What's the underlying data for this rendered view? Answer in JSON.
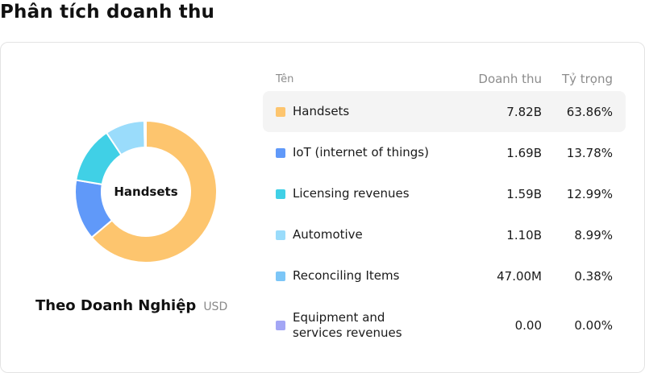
{
  "page": {
    "title": "Phân tích doanh thu"
  },
  "chart_data": {
    "type": "pie",
    "subtype": "donut",
    "center_label": "Handsets",
    "title": "Theo Doanh Nghiệp",
    "unit": "USD",
    "columns": {
      "name": "Tên",
      "revenue": "Doanh thu",
      "share": "Tỷ trọng"
    },
    "series": [
      {
        "name": "Handsets",
        "revenue": "7.82B",
        "share": "63.86%",
        "value": 63.86,
        "color": "#fdc56e",
        "highlighted": true
      },
      {
        "name": "IoT (internet of things)",
        "revenue": "1.69B",
        "share": "13.78%",
        "value": 13.78,
        "color": "#6099f9"
      },
      {
        "name": "Licensing revenues",
        "revenue": "1.59B",
        "share": "12.99%",
        "value": 12.99,
        "color": "#40d0e6"
      },
      {
        "name": "Automotive",
        "revenue": "1.10B",
        "share": "8.99%",
        "value": 8.99,
        "color": "#9adcfb"
      },
      {
        "name": "Reconciling Items",
        "revenue": "47.00M",
        "share": "0.38%",
        "value": 0.38,
        "color": "#7cc6f7"
      },
      {
        "name": "Equipment and\nservices revenues",
        "revenue": "0.00",
        "share": "0.00%",
        "value": 0.0,
        "color": "#a3a6f5"
      }
    ]
  }
}
